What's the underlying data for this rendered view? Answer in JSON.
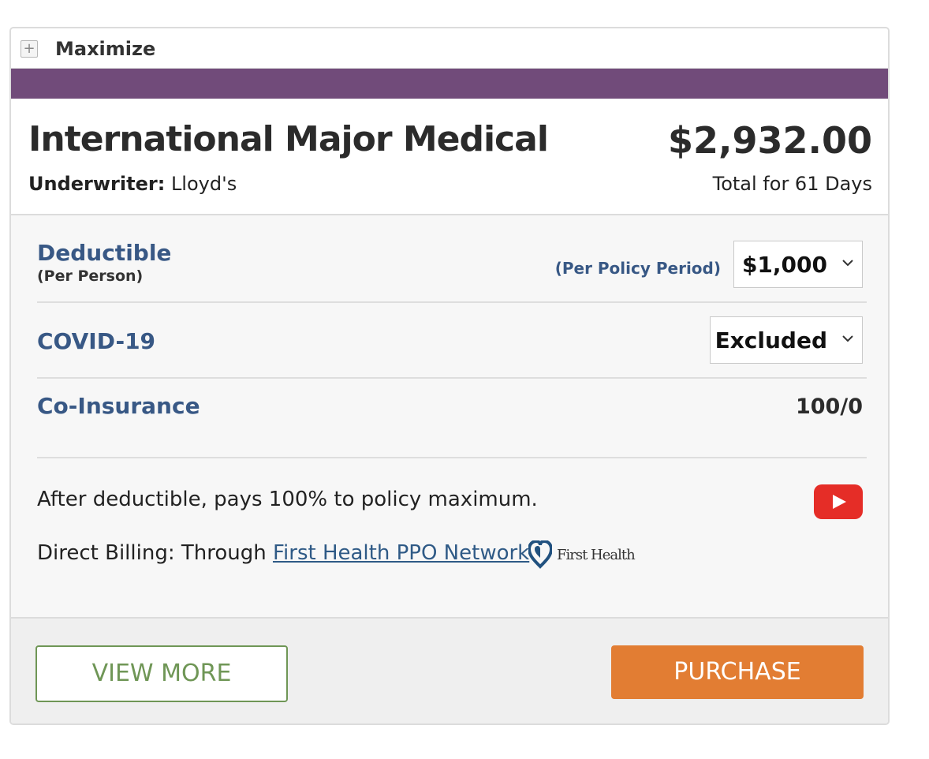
{
  "colors": {
    "accent_bar": "#714b7a",
    "option_label": "#385885",
    "link": "#2f5a86",
    "view_more": "#6f9656",
    "purchase_bg": "#e27d33",
    "youtube_red": "#e52d27",
    "first_health_blue": "#21517f"
  },
  "toolbar": {
    "maximize_label": "Maximize"
  },
  "plan": {
    "name": "International Major Medical",
    "underwriter_label": "Underwriter:",
    "underwriter": "Lloyd's",
    "price": "$2,932.00",
    "price_note": "Total for 61 Days"
  },
  "options": {
    "deductible": {
      "label": "Deductible",
      "sublabel": "(Per Person)",
      "period_note": "(Per Policy Period)",
      "selected": "$1,000"
    },
    "covid": {
      "label": "COVID-19",
      "selected": "Excluded"
    },
    "coinsurance": {
      "label": "Co-Insurance",
      "value": "100/0"
    }
  },
  "details": {
    "description": "After deductible, pays 100% to policy maximum.",
    "billing_prefix": "Direct Billing: Through",
    "billing_link": "First Health PPO Network",
    "network_logo_text": "First Health",
    "video_icon": "youtube-play-icon"
  },
  "actions": {
    "view_more": "VIEW MORE",
    "purchase": "PURCHASE"
  }
}
